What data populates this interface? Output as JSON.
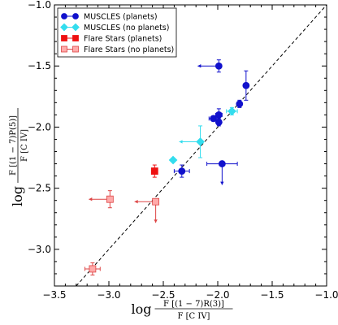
{
  "chart_data": {
    "type": "scatter",
    "title": "",
    "xlabel": "log F[(1−7)R(3)] / F[C IV]",
    "xlabel_prefix": "log",
    "xlabel_numerator": "F [(1 − 7)R(3)]",
    "xlabel_denominator": "F [C IV]",
    "ylabel": "log F[(1−7)P(5)] / F[C IV]",
    "ylabel_prefix": "log",
    "ylabel_numerator": "F [(1 − 7)P(5)]",
    "ylabel_denominator": "F [C IV]",
    "xlim": [
      -3.5,
      -1.0
    ],
    "ylim": [
      -3.3,
      -1.0
    ],
    "xticks": [
      -3.5,
      -3.0,
      -2.5,
      -2.0,
      -1.5,
      -1.0
    ],
    "yticks": [
      -3.0,
      -2.5,
      -2.0,
      -1.5,
      -1.0
    ],
    "xtick_labels": [
      "−3.5",
      "−3.0",
      "−2.5",
      "−2.0",
      "−1.5",
      "−1.0"
    ],
    "ytick_labels": [
      "−3.0",
      "−2.5",
      "−2.0",
      "−1.5",
      "−1.0"
    ],
    "grid": false,
    "legend_position": "top-left",
    "reference_line": {
      "style": "dashed",
      "slope": 1,
      "intercept": 0
    },
    "series": [
      {
        "name": "MUSCLES (planets)",
        "color": "#1111cc",
        "marker": "circle",
        "points": [
          {
            "x": -1.99,
            "y": -1.5,
            "yerr": 0.05,
            "xarrow": "left"
          },
          {
            "x": -1.74,
            "y": -1.66,
            "yerr": 0.12
          },
          {
            "x": -1.8,
            "y": -1.81,
            "yerr": 0.03
          },
          {
            "x": -1.99,
            "y": -1.9,
            "xerr": 0.03,
            "yerr": 0.05
          },
          {
            "x": -2.04,
            "y": -1.93,
            "xerr": 0.04
          },
          {
            "x": -1.99,
            "y": -1.96,
            "yerr": 0.03
          },
          {
            "x": -1.96,
            "y": -2.3,
            "xerr": 0.14,
            "yarrow": "down"
          },
          {
            "x": -2.33,
            "y": -2.36,
            "xerr": 0.07,
            "yerr": 0.05
          }
        ]
      },
      {
        "name": "MUSCLES (no planets)",
        "color": "#33ddee",
        "marker": "diamond",
        "points": [
          {
            "x": -1.87,
            "y": -1.87,
            "xerr": 0.05,
            "yerr": 0.03
          },
          {
            "x": -2.16,
            "y": -2.12,
            "yerr": 0.13,
            "xarrow": "left"
          },
          {
            "x": -2.41,
            "y": -2.27
          }
        ]
      },
      {
        "name": "Flare Stars (planets)",
        "color": "#ee1111",
        "marker": "square",
        "points": [
          {
            "x": -2.58,
            "y": -2.36,
            "yerr": 0.05
          }
        ]
      },
      {
        "name": "Flare Stars (no planets)",
        "color": "#ffaaaa",
        "edge": "#dd4444",
        "marker": "square",
        "points": [
          {
            "x": -2.99,
            "y": -2.59,
            "yerr": 0.07,
            "xarrow": "left"
          },
          {
            "x": -2.57,
            "y": -2.61,
            "yarrow": "down",
            "xarrow": "left"
          },
          {
            "x": -3.15,
            "y": -3.16,
            "xerr": 0.07,
            "yerr": 0.05
          }
        ]
      }
    ]
  }
}
